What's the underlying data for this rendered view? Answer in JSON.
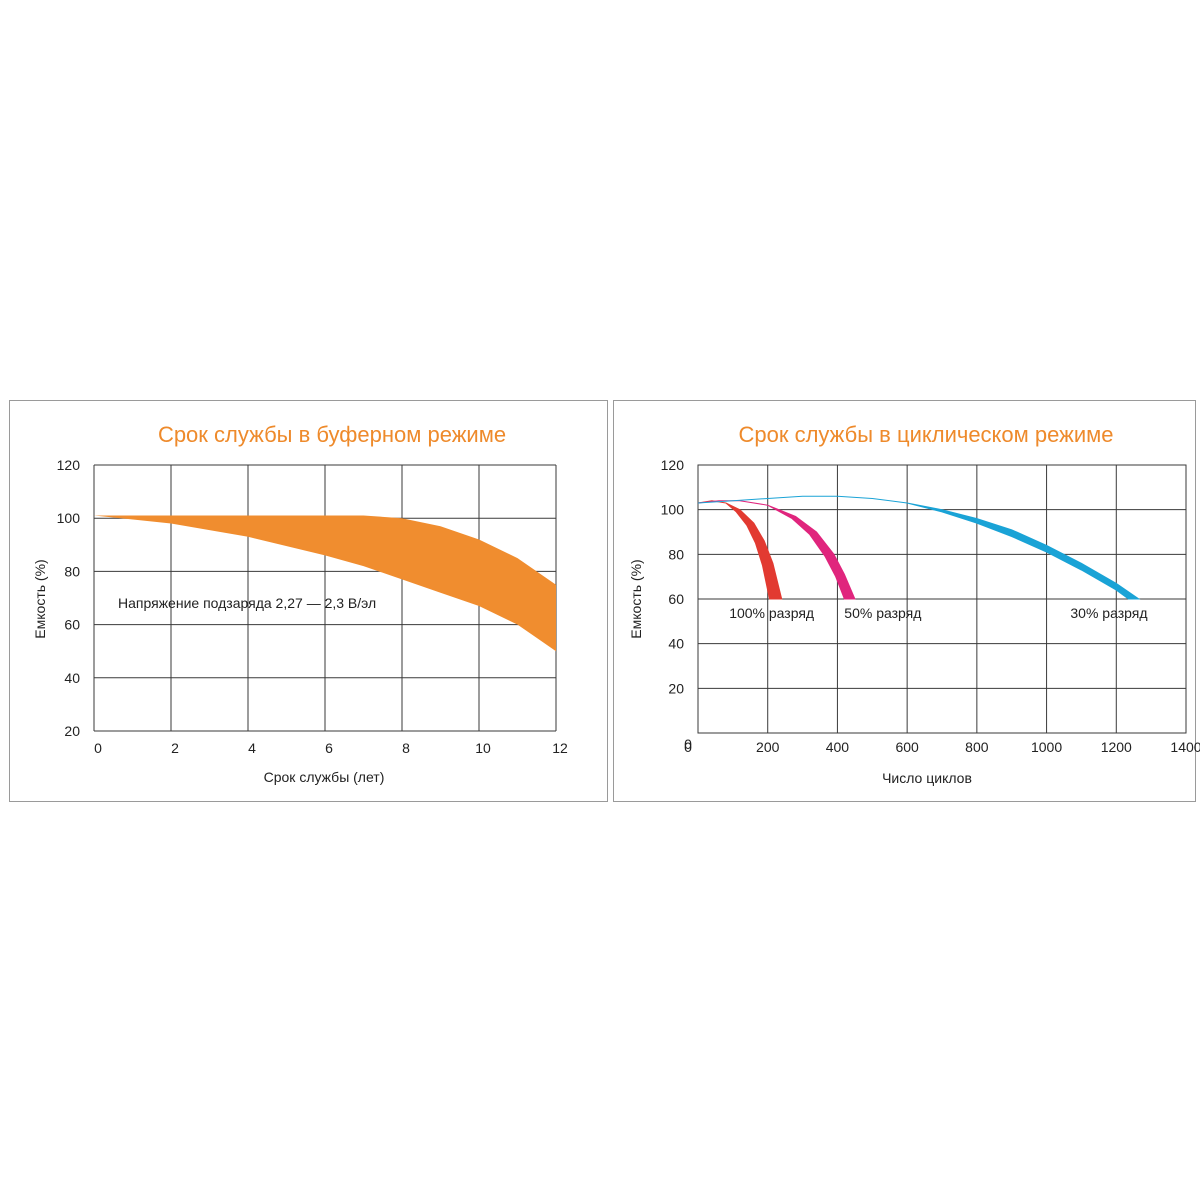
{
  "chart_data": [
    {
      "type": "area",
      "title": "Срок службы в буферном режиме",
      "xlabel": "Срок службы (лет)",
      "ylabel": "Емкость (%)",
      "xlim": [
        0,
        12
      ],
      "ylim": [
        20,
        120
      ],
      "x_ticks": [
        0,
        2,
        4,
        6,
        8,
        10,
        12
      ],
      "y_ticks": [
        20,
        40,
        60,
        80,
        100,
        120
      ],
      "grid": true,
      "annotation": "Напряжение подзаряда 2,27 — 2,3 В/эл",
      "colors": {
        "band": "#f08d2f"
      },
      "band": {
        "upper": {
          "x": [
            0,
            2,
            4,
            6,
            7,
            8,
            9,
            10,
            11,
            12
          ],
          "y": [
            101,
            101,
            101,
            101,
            101,
            100,
            97,
            92,
            85,
            75
          ]
        },
        "lower": {
          "x": [
            0,
            2,
            4,
            6,
            7,
            8,
            9,
            10,
            11,
            12
          ],
          "y": [
            101,
            98,
            93,
            86,
            82,
            77,
            72,
            67,
            60,
            50
          ]
        }
      }
    },
    {
      "type": "area",
      "title": "Срок службы в циклическом режиме",
      "xlabel": "Число циклов",
      "ylabel": "Емкость (%)",
      "xlim": [
        0,
        1400
      ],
      "ylim": [
        0,
        120
      ],
      "x_ticks": [
        0,
        200,
        400,
        600,
        800,
        1000,
        1200,
        1400
      ],
      "y_ticks": [
        0,
        20,
        40,
        60,
        80,
        100,
        120
      ],
      "grid": true,
      "colors": {
        "red": "#e23a31",
        "magenta": "#e0257d",
        "cyan": "#1aa3d6"
      },
      "series": [
        {
          "name": "100% разряд",
          "color": "#e23a31",
          "upper": {
            "x": [
              0,
              40,
              80,
              120,
              160,
              190,
              215,
              240
            ],
            "y": [
              103,
              104,
              103,
              100,
              94,
              86,
              76,
              60
            ]
          },
          "lower": {
            "x": [
              0,
              40,
              80,
              110,
              140,
              165,
              185,
              205
            ],
            "y": [
              103,
              104,
              103,
              99,
              93,
              85,
              75,
              60
            ]
          }
        },
        {
          "name": "50% разряд",
          "color": "#e0257d",
          "upper": {
            "x": [
              0,
              60,
              120,
              200,
              280,
              340,
              390,
              420,
              450
            ],
            "y": [
              103,
              104,
              104,
              102,
              97,
              90,
              80,
              71,
              60
            ]
          },
          "lower": {
            "x": [
              0,
              60,
              120,
              200,
              270,
              320,
              365,
              395,
              420
            ],
            "y": [
              103,
              104,
              104,
              102,
              96,
              89,
              79,
              70,
              60
            ]
          }
        },
        {
          "name": "30% разряд",
          "color": "#1aa3d6",
          "upper": {
            "x": [
              0,
              100,
              200,
              300,
              400,
              500,
              600,
              700,
              800,
              900,
              1000,
              1100,
              1200,
              1265
            ],
            "y": [
              103,
              104,
              105,
              106,
              106,
              105,
              103,
              100,
              96,
              91,
              84,
              76,
              67,
              60
            ]
          },
          "lower": {
            "x": [
              0,
              100,
              200,
              300,
              400,
              500,
              600,
              700,
              800,
              900,
              1000,
              1100,
              1200,
              1235
            ],
            "y": [
              103,
              104,
              105,
              106,
              106,
              105,
              103,
              99,
              94,
              88,
              81,
              73,
              64,
              60
            ]
          }
        }
      ]
    }
  ]
}
